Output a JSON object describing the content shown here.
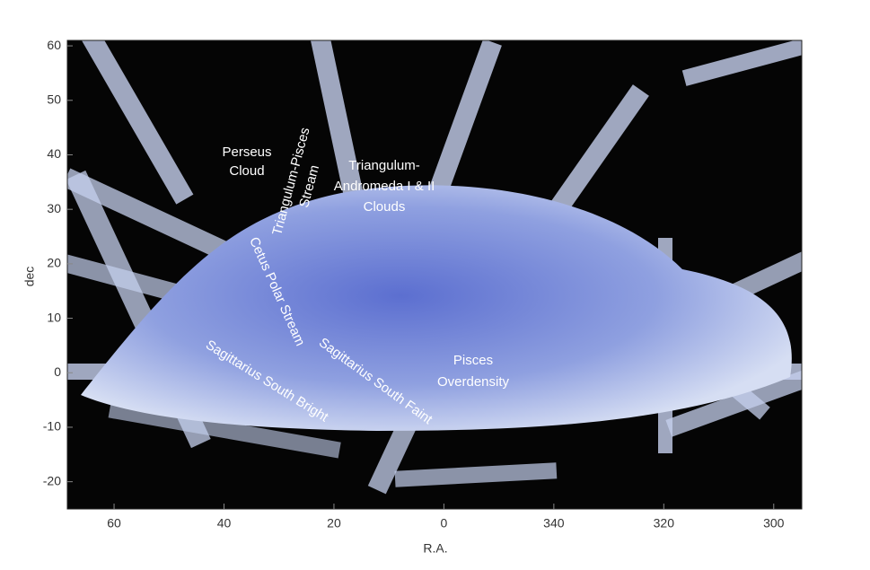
{
  "chart_data": {
    "type": "image",
    "xlabel": "R.A.",
    "ylabel": "dec",
    "xlim": [
      68.5,
      -65.1
    ],
    "xticks": [
      60,
      40,
      20,
      0,
      {
        "value": -20,
        "label": "340"
      },
      {
        "value": -40,
        "label": "320"
      },
      {
        "value": -60,
        "label": "300"
      }
    ],
    "ylim": [
      -25,
      61
    ],
    "yticks": [
      -20,
      -10,
      0,
      10,
      20,
      30,
      40,
      50,
      60
    ],
    "annotations": [
      {
        "lines": [
          "Perseus",
          "Cloud"
        ]
      },
      {
        "lines": [
          "Triangulum-Pisces",
          "Stream"
        ]
      },
      {
        "lines": [
          "Triangulum-",
          "Andromeda I & II",
          "Clouds"
        ]
      },
      {
        "lines": [
          "Cetus Polar Stream"
        ]
      },
      {
        "lines": [
          "Sagittarius South Bright"
        ]
      },
      {
        "lines": [
          "Sagittarius South Faint"
        ]
      },
      {
        "lines": [
          "Pisces",
          "Overdensity"
        ]
      }
    ]
  }
}
